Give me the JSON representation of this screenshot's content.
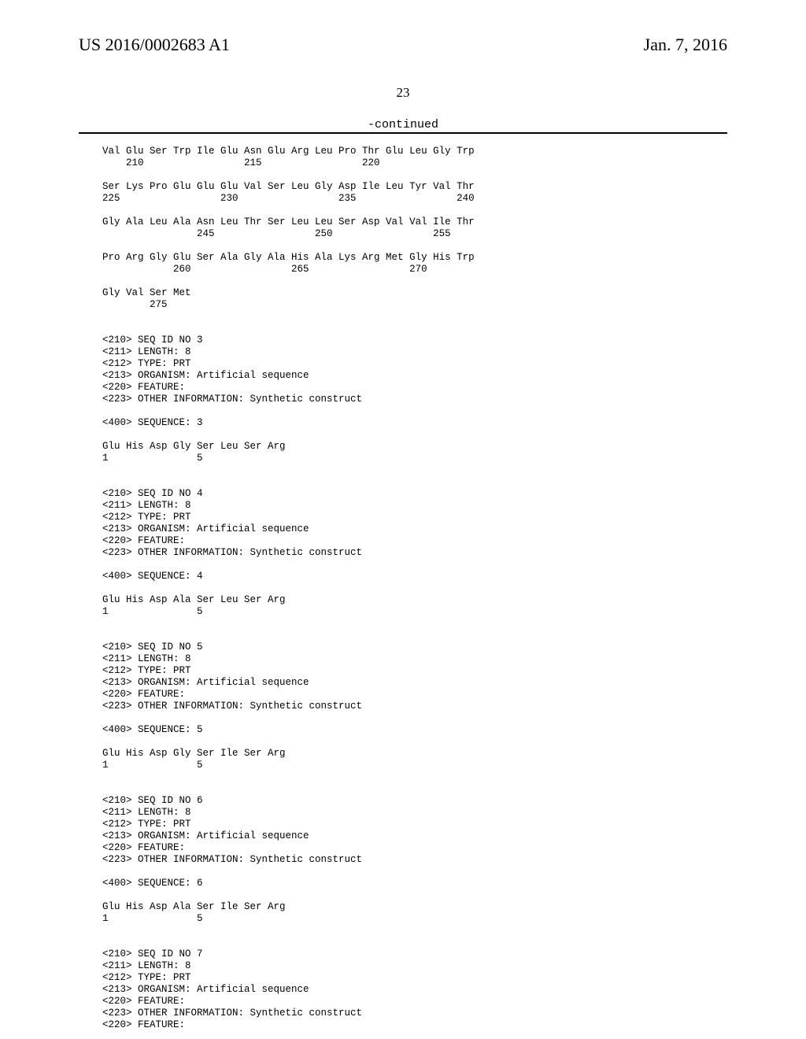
{
  "header": {
    "left": "US 2016/0002683 A1",
    "right": "Jan. 7, 2016",
    "page_number": "23",
    "continued": "-continued"
  },
  "sequence_text": "Val Glu Ser Trp Ile Glu Asn Glu Arg Leu Pro Thr Glu Leu Gly Trp\n    210                 215                 220\n\nSer Lys Pro Glu Glu Glu Val Ser Leu Gly Asp Ile Leu Tyr Val Thr\n225                 230                 235                 240\n\nGly Ala Leu Ala Asn Leu Thr Ser Leu Leu Ser Asp Val Val Ile Thr\n                245                 250                 255\n\nPro Arg Gly Glu Ser Ala Gly Ala His Ala Lys Arg Met Gly His Trp\n            260                 265                 270\n\nGly Val Ser Met\n        275\n\n\n<210> SEQ ID NO 3\n<211> LENGTH: 8\n<212> TYPE: PRT\n<213> ORGANISM: Artificial sequence\n<220> FEATURE:\n<223> OTHER INFORMATION: Synthetic construct\n\n<400> SEQUENCE: 3\n\nGlu His Asp Gly Ser Leu Ser Arg\n1               5\n\n\n<210> SEQ ID NO 4\n<211> LENGTH: 8\n<212> TYPE: PRT\n<213> ORGANISM: Artificial sequence\n<220> FEATURE:\n<223> OTHER INFORMATION: Synthetic construct\n\n<400> SEQUENCE: 4\n\nGlu His Asp Ala Ser Leu Ser Arg\n1               5\n\n\n<210> SEQ ID NO 5\n<211> LENGTH: 8\n<212> TYPE: PRT\n<213> ORGANISM: Artificial sequence\n<220> FEATURE:\n<223> OTHER INFORMATION: Synthetic construct\n\n<400> SEQUENCE: 5\n\nGlu His Asp Gly Ser Ile Ser Arg\n1               5\n\n\n<210> SEQ ID NO 6\n<211> LENGTH: 8\n<212> TYPE: PRT\n<213> ORGANISM: Artificial sequence\n<220> FEATURE:\n<223> OTHER INFORMATION: Synthetic construct\n\n<400> SEQUENCE: 6\n\nGlu His Asp Ala Ser Ile Ser Arg\n1               5\n\n\n<210> SEQ ID NO 7\n<211> LENGTH: 8\n<212> TYPE: PRT\n<213> ORGANISM: Artificial sequence\n<220> FEATURE:\n<223> OTHER INFORMATION: Synthetic construct\n<220> FEATURE:"
}
